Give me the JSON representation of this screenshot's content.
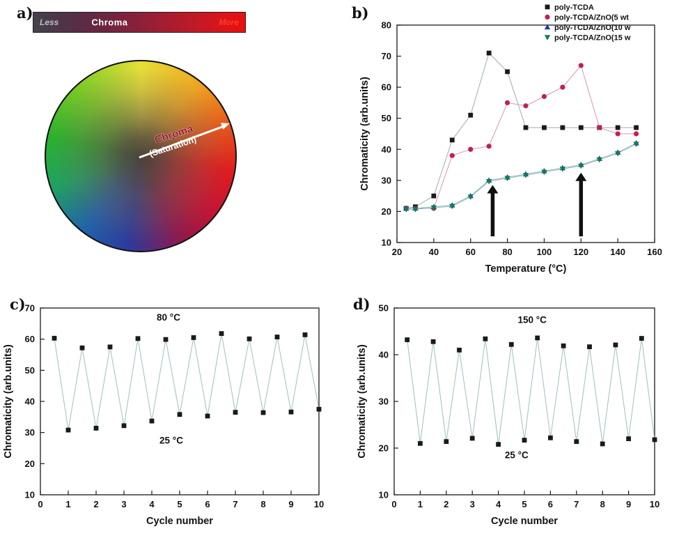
{
  "figure": {
    "panel_a": {
      "label": "a)",
      "bar": {
        "less": "Less",
        "title": "Chroma",
        "more": "More"
      },
      "arrow": {
        "line1": "Chroma",
        "line2": "(Saturation)"
      }
    },
    "panel_b": {
      "label": "b)"
    },
    "panel_c": {
      "label": "c)"
    },
    "panel_d": {
      "label": "d)"
    }
  },
  "chart_data": [
    {
      "id": "b",
      "type": "line",
      "title": "",
      "xlabel": "Temperature (°C)",
      "ylabel": "Chromaticity (arb.units)",
      "xlim": [
        20,
        160
      ],
      "ylim": [
        10,
        80
      ],
      "xticks": [
        20,
        40,
        60,
        80,
        100,
        120,
        140,
        160
      ],
      "yticks": [
        10,
        20,
        30,
        40,
        50,
        60,
        70,
        80
      ],
      "grid": false,
      "legend_position": "top-right",
      "series": [
        {
          "name": "poly-TCDA",
          "marker": "square",
          "color": "#1a1a1a",
          "line_color": "#9aaeae",
          "x": [
            25,
            30,
            40,
            50,
            60,
            70,
            80,
            90,
            100,
            110,
            120,
            130,
            140,
            150
          ],
          "y": [
            21,
            21.5,
            25,
            43,
            51,
            71,
            65,
            47,
            47,
            47,
            47,
            47,
            47,
            47
          ]
        },
        {
          "name": "poly-TCDA/ZnO(5 wt",
          "marker": "circle",
          "color": "#c2204e",
          "line_color": "#d995ab",
          "x": [
            25,
            30,
            40,
            50,
            60,
            70,
            80,
            90,
            100,
            110,
            120,
            130,
            140,
            150
          ],
          "y": [
            21,
            21,
            21,
            38,
            40,
            41,
            55,
            54,
            57,
            60,
            67,
            47,
            45,
            45
          ]
        },
        {
          "name": "poly-TCDA/ZnO(10 w",
          "marker": "triangle-up",
          "color": "#203a9e",
          "line_color": "#8fb8b8",
          "x": [
            25,
            30,
            40,
            50,
            60,
            70,
            80,
            90,
            100,
            110,
            120,
            130,
            140,
            150
          ],
          "y": [
            21,
            21,
            21.5,
            22,
            25,
            30,
            31,
            32,
            33,
            34,
            35,
            37,
            39,
            42
          ]
        },
        {
          "name": "poly-TCDA/ZnO(15 w",
          "marker": "triangle-down",
          "color": "#0e7d55",
          "line_color": "#8fb8b8",
          "x": [
            25,
            30,
            40,
            50,
            60,
            70,
            80,
            90,
            100,
            110,
            120,
            130,
            140,
            150
          ],
          "y": [
            20.7,
            20.7,
            21.2,
            21.7,
            24.7,
            29.7,
            30.7,
            31.7,
            32.7,
            33.7,
            34.7,
            36.7,
            38.7,
            41.7
          ]
        }
      ],
      "annotations": [
        {
          "type": "arrow-up",
          "x": 72,
          "y_from": 12,
          "y_to": 28.5
        },
        {
          "type": "arrow-up",
          "x": 120,
          "y_from": 12,
          "y_to": 32.5
        }
      ]
    },
    {
      "id": "c",
      "type": "line",
      "title": "",
      "xlabel": "Cycle number",
      "ylabel": "Chromaticity (arb.units)",
      "xlim": [
        0,
        10
      ],
      "ylim": [
        10,
        70
      ],
      "xticks": [
        0,
        1,
        2,
        3,
        4,
        5,
        6,
        7,
        8,
        9,
        10
      ],
      "yticks": [
        10,
        20,
        30,
        40,
        50,
        60,
        70
      ],
      "grid": false,
      "series": [
        {
          "name": "thermal-cycles-80C",
          "marker": "square",
          "color": "#1a1a1a",
          "line_color": "#9bc0c0",
          "x": [
            0.5,
            1,
            1.5,
            2,
            2.5,
            3,
            3.5,
            4,
            4.5,
            5,
            5.5,
            6,
            6.5,
            7,
            7.5,
            8,
            8.5,
            9,
            9.5,
            10
          ],
          "y": [
            60.3,
            30.8,
            57.2,
            31.4,
            57.5,
            32.2,
            60.2,
            33.7,
            59.9,
            35.8,
            60.5,
            35.3,
            61.8,
            36.5,
            60.1,
            36.4,
            60.7,
            36.6,
            61.4,
            37.5
          ]
        }
      ],
      "annotations": [
        {
          "type": "text",
          "x": 4.6,
          "y": 66,
          "text": "80 °C"
        },
        {
          "type": "text",
          "x": 4.7,
          "y": 26.5,
          "text": "25 °C"
        }
      ]
    },
    {
      "id": "d",
      "type": "line",
      "title": "",
      "xlabel": "Cycle number",
      "ylabel": "Chromaticity (arb.units)",
      "xlim": [
        0,
        10
      ],
      "ylim": [
        10,
        50
      ],
      "xticks": [
        0,
        1,
        2,
        3,
        4,
        5,
        6,
        7,
        8,
        9,
        10
      ],
      "yticks": [
        10,
        20,
        30,
        40,
        50
      ],
      "grid": false,
      "series": [
        {
          "name": "thermal-cycles-150C",
          "marker": "square",
          "color": "#1a1a1a",
          "line_color": "#9bc0c0",
          "x": [
            0.5,
            1,
            1.5,
            2,
            2.5,
            3,
            3.5,
            4,
            4.5,
            5,
            5.5,
            6,
            6.5,
            7,
            7.5,
            8,
            8.5,
            9,
            9.5,
            10
          ],
          "y": [
            43.2,
            21.0,
            42.8,
            21.4,
            41.0,
            22.1,
            43.4,
            20.8,
            42.2,
            21.7,
            43.6,
            22.2,
            41.9,
            21.4,
            41.7,
            20.9,
            42.1,
            22.0,
            43.5,
            21.8
          ]
        }
      ],
      "annotations": [
        {
          "type": "text",
          "x": 5.3,
          "y": 46.8,
          "text": "150 °C"
        },
        {
          "type": "text",
          "x": 4.7,
          "y": 17.8,
          "text": "25 °C"
        }
      ]
    }
  ]
}
